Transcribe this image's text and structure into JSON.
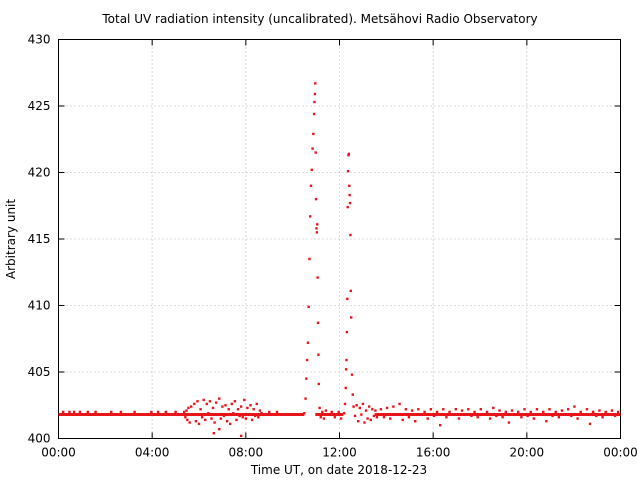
{
  "chart_data": {
    "type": "scatter",
    "title": "Total UV radiation intensity (uncalibrated). Metsähovi Radio Observatory",
    "xlabel": "Time UT, on date 2018-12-23",
    "ylabel": "Arbitrary unit",
    "xlim": [
      0,
      1440
    ],
    "ylim": [
      400,
      430
    ],
    "x_unit": "minutes UT",
    "x_ticks": [
      {
        "value": 0,
        "label": "00:00"
      },
      {
        "value": 240,
        "label": "04:00"
      },
      {
        "value": 480,
        "label": "08:00"
      },
      {
        "value": 720,
        "label": "12:00"
      },
      {
        "value": 960,
        "label": "16:00"
      },
      {
        "value": 1200,
        "label": "20:00"
      },
      {
        "value": 1440,
        "label": "00:00"
      }
    ],
    "y_ticks": [
      400,
      405,
      410,
      415,
      420,
      425,
      430
    ],
    "grid": true,
    "color": "#e8151a",
    "baseline": {
      "y": 401.8,
      "x_ranges": [
        [
          0,
          630
        ],
        [
          658,
          730
        ],
        [
          810,
          1440
        ]
      ]
    },
    "series": [
      {
        "points": [
          [
            12,
            402
          ],
          [
            28,
            402
          ],
          [
            40,
            402
          ],
          [
            55,
            402
          ],
          [
            75,
            402
          ],
          [
            95,
            402
          ],
          [
            135,
            402
          ],
          [
            160,
            402
          ],
          [
            195,
            402
          ],
          [
            238,
            402
          ],
          [
            255,
            402
          ],
          [
            275,
            402
          ],
          [
            300,
            402
          ],
          [
            322,
            402
          ],
          [
            325,
            401.6
          ],
          [
            328,
            402.1
          ],
          [
            330,
            401.4
          ],
          [
            333,
            402.3
          ],
          [
            336,
            401.2
          ],
          [
            340,
            402.4
          ],
          [
            344,
            401.8
          ],
          [
            348,
            402.6
          ],
          [
            352,
            401.3
          ],
          [
            356,
            402.8
          ],
          [
            360,
            401.1
          ],
          [
            364,
            402.2
          ],
          [
            368,
            401.6
          ],
          [
            372,
            402.9
          ],
          [
            376,
            401.4
          ],
          [
            380,
            402.6
          ],
          [
            384,
            401.9
          ],
          [
            388,
            402.8
          ],
          [
            392,
            401.5
          ],
          [
            396,
            402.3
          ],
          [
            400,
            401.2
          ],
          [
            404,
            402.7
          ],
          [
            408,
            401.8
          ],
          [
            412,
            403.0
          ],
          [
            416,
            401.5
          ],
          [
            420,
            402.4
          ],
          [
            424,
            401.7
          ],
          [
            428,
            402.5
          ],
          [
            432,
            401.3
          ],
          [
            436,
            402.2
          ],
          [
            440,
            401.1
          ],
          [
            444,
            402.6
          ],
          [
            448,
            401.9
          ],
          [
            452,
            402.8
          ],
          [
            456,
            401.4
          ],
          [
            460,
            402.2
          ],
          [
            464,
            401.7
          ],
          [
            468,
            402.4
          ],
          [
            472,
            401.6
          ],
          [
            476,
            402.9
          ],
          [
            480,
            401.5
          ],
          [
            484,
            402.3
          ],
          [
            488,
            401.8
          ],
          [
            492,
            402.5
          ],
          [
            496,
            401.4
          ],
          [
            500,
            402.2
          ],
          [
            504,
            401.7
          ],
          [
            508,
            402.6
          ],
          [
            512,
            401.6
          ],
          [
            516,
            402.1
          ],
          [
            520,
            401.9
          ],
          [
            398,
            400.4
          ],
          [
            468,
            400.2
          ],
          [
            412,
            400.7
          ],
          [
            540,
            402
          ],
          [
            560,
            402
          ],
          [
            630,
            401.9
          ],
          [
            633,
            403.0
          ],
          [
            635,
            404.5
          ],
          [
            637,
            405.9
          ],
          [
            639,
            407.2
          ],
          [
            641,
            409.9
          ],
          [
            643,
            413.5
          ],
          [
            645,
            416.7
          ],
          [
            647,
            419.0
          ],
          [
            649,
            420.2
          ],
          [
            651,
            421.8
          ],
          [
            653,
            422.9
          ],
          [
            655,
            424.4
          ],
          [
            656,
            425.3
          ],
          [
            657,
            425.9
          ],
          [
            658,
            426.7
          ],
          [
            659,
            421.5
          ],
          [
            660,
            418.0
          ],
          [
            661,
            415.8
          ],
          [
            662,
            415.5
          ],
          [
            663,
            416.1
          ],
          [
            664,
            412.1
          ],
          [
            665,
            408.7
          ],
          [
            666,
            406.3
          ],
          [
            667,
            404.1
          ],
          [
            669,
            402.3
          ],
          [
            672,
            401.6
          ],
          [
            676,
            402.0
          ],
          [
            680,
            401.5
          ],
          [
            685,
            402.1
          ],
          [
            690,
            401.8
          ],
          [
            700,
            402.0
          ],
          [
            708,
            401.6
          ],
          [
            718,
            402.0
          ],
          [
            724,
            401.5
          ],
          [
            732,
            401.9
          ],
          [
            734,
            402.6
          ],
          [
            736,
            403.8
          ],
          [
            737,
            405.2
          ],
          [
            738,
            405.9
          ],
          [
            739,
            408.0
          ],
          [
            740,
            410.5
          ],
          [
            741,
            417.4
          ],
          [
            742,
            420.1
          ],
          [
            743,
            421.3
          ],
          [
            744,
            421.4
          ],
          [
            745,
            419.0
          ],
          [
            746,
            418.3
          ],
          [
            747,
            417.7
          ],
          [
            748,
            415.3
          ],
          [
            749,
            411.1
          ],
          [
            750,
            409.1
          ],
          [
            752,
            404.8
          ],
          [
            754,
            403.3
          ],
          [
            756,
            402.4
          ],
          [
            760,
            401.7
          ],
          [
            764,
            402.5
          ],
          [
            768,
            401.3
          ],
          [
            772,
            402.3
          ],
          [
            776,
            401.8
          ],
          [
            780,
            402.6
          ],
          [
            784,
            401.2
          ],
          [
            788,
            402.1
          ],
          [
            792,
            401.5
          ],
          [
            796,
            402.4
          ],
          [
            800,
            401.4
          ],
          [
            804,
            402.2
          ],
          [
            808,
            401.7
          ],
          [
            812,
            402.1
          ],
          [
            816,
            401.6
          ],
          [
            826,
            402.2
          ],
          [
            834,
            401.6
          ],
          [
            842,
            402.3
          ],
          [
            850,
            401.5
          ],
          [
            858,
            402.4
          ],
          [
            866,
            401.8
          ],
          [
            874,
            402.6
          ],
          [
            882,
            401.4
          ],
          [
            890,
            402.2
          ],
          [
            898,
            401.6
          ],
          [
            906,
            402.1
          ],
          [
            914,
            401.3
          ],
          [
            922,
            402.2
          ],
          [
            930,
            401.8
          ],
          [
            938,
            402.0
          ],
          [
            946,
            401.5
          ],
          [
            954,
            402.2
          ],
          [
            962,
            401.7
          ],
          [
            970,
            402.0
          ],
          [
            978,
            401.0
          ],
          [
            986,
            402.2
          ],
          [
            994,
            401.6
          ],
          [
            1002,
            402.0
          ],
          [
            1010,
            401.8
          ],
          [
            1018,
            402.2
          ],
          [
            1026,
            401.5
          ],
          [
            1034,
            402.1
          ],
          [
            1042,
            401.8
          ],
          [
            1050,
            402.2
          ],
          [
            1058,
            401.7
          ],
          [
            1066,
            402.0
          ],
          [
            1074,
            401.6
          ],
          [
            1082,
            402.2
          ],
          [
            1090,
            401.8
          ],
          [
            1098,
            402.0
          ],
          [
            1106,
            401.5
          ],
          [
            1114,
            402.3
          ],
          [
            1122,
            401.7
          ],
          [
            1130,
            402.1
          ],
          [
            1138,
            401.6
          ],
          [
            1146,
            402.0
          ],
          [
            1154,
            401.2
          ],
          [
            1162,
            402.1
          ],
          [
            1170,
            401.8
          ],
          [
            1178,
            402.0
          ],
          [
            1186,
            401.6
          ],
          [
            1194,
            402.2
          ],
          [
            1202,
            401.7
          ],
          [
            1210,
            402.0
          ],
          [
            1218,
            401.5
          ],
          [
            1226,
            402.2
          ],
          [
            1234,
            401.8
          ],
          [
            1242,
            402.0
          ],
          [
            1250,
            401.3
          ],
          [
            1258,
            402.2
          ],
          [
            1266,
            401.7
          ],
          [
            1274,
            402.0
          ],
          [
            1282,
            401.6
          ],
          [
            1290,
            402.1
          ],
          [
            1298,
            401.8
          ],
          [
            1306,
            402.2
          ],
          [
            1314,
            401.7
          ],
          [
            1322,
            402.4
          ],
          [
            1330,
            401.5
          ],
          [
            1338,
            402.0
          ],
          [
            1346,
            401.8
          ],
          [
            1354,
            402.2
          ],
          [
            1362,
            401.1
          ],
          [
            1370,
            402.0
          ],
          [
            1378,
            401.7
          ],
          [
            1386,
            402.1
          ],
          [
            1394,
            401.6
          ],
          [
            1402,
            402.0
          ],
          [
            1410,
            401.8
          ],
          [
            1418,
            402.1
          ],
          [
            1426,
            401.7
          ],
          [
            1434,
            402.0
          ]
        ]
      }
    ]
  }
}
